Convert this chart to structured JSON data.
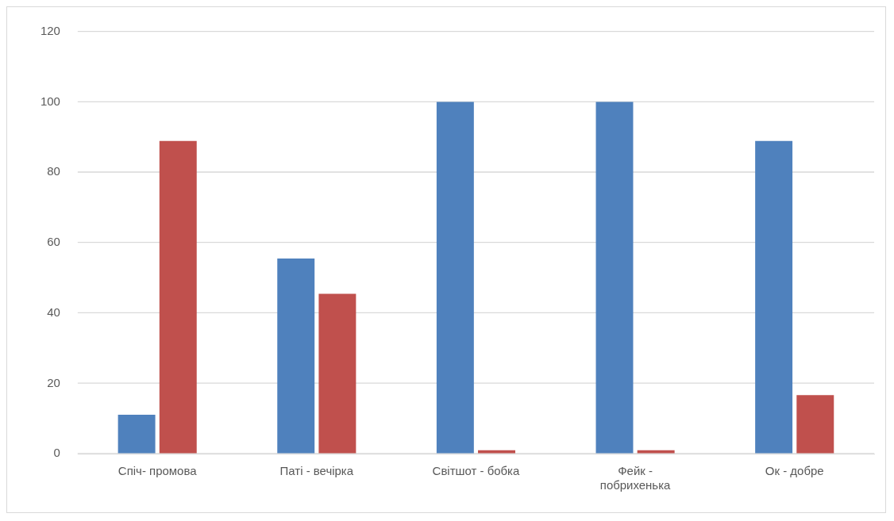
{
  "chart_data": {
    "type": "bar",
    "categories": [
      "Спіч- промова",
      "Паті - вечірка",
      "Світшот - бобка",
      "Фейк -\nпобрихенька",
      "Ок - добре"
    ],
    "series": [
      {
        "color": "#4f81bd",
        "values": [
          11.1,
          55.5,
          100,
          100,
          88.9
        ]
      },
      {
        "color": "#c0504d",
        "values": [
          88.9,
          45.5,
          1,
          1,
          16.7
        ]
      }
    ],
    "ylim": [
      0,
      120
    ],
    "yticks": [
      0,
      20,
      40,
      60,
      80,
      100,
      120
    ],
    "grid": "y",
    "legend": false
  }
}
